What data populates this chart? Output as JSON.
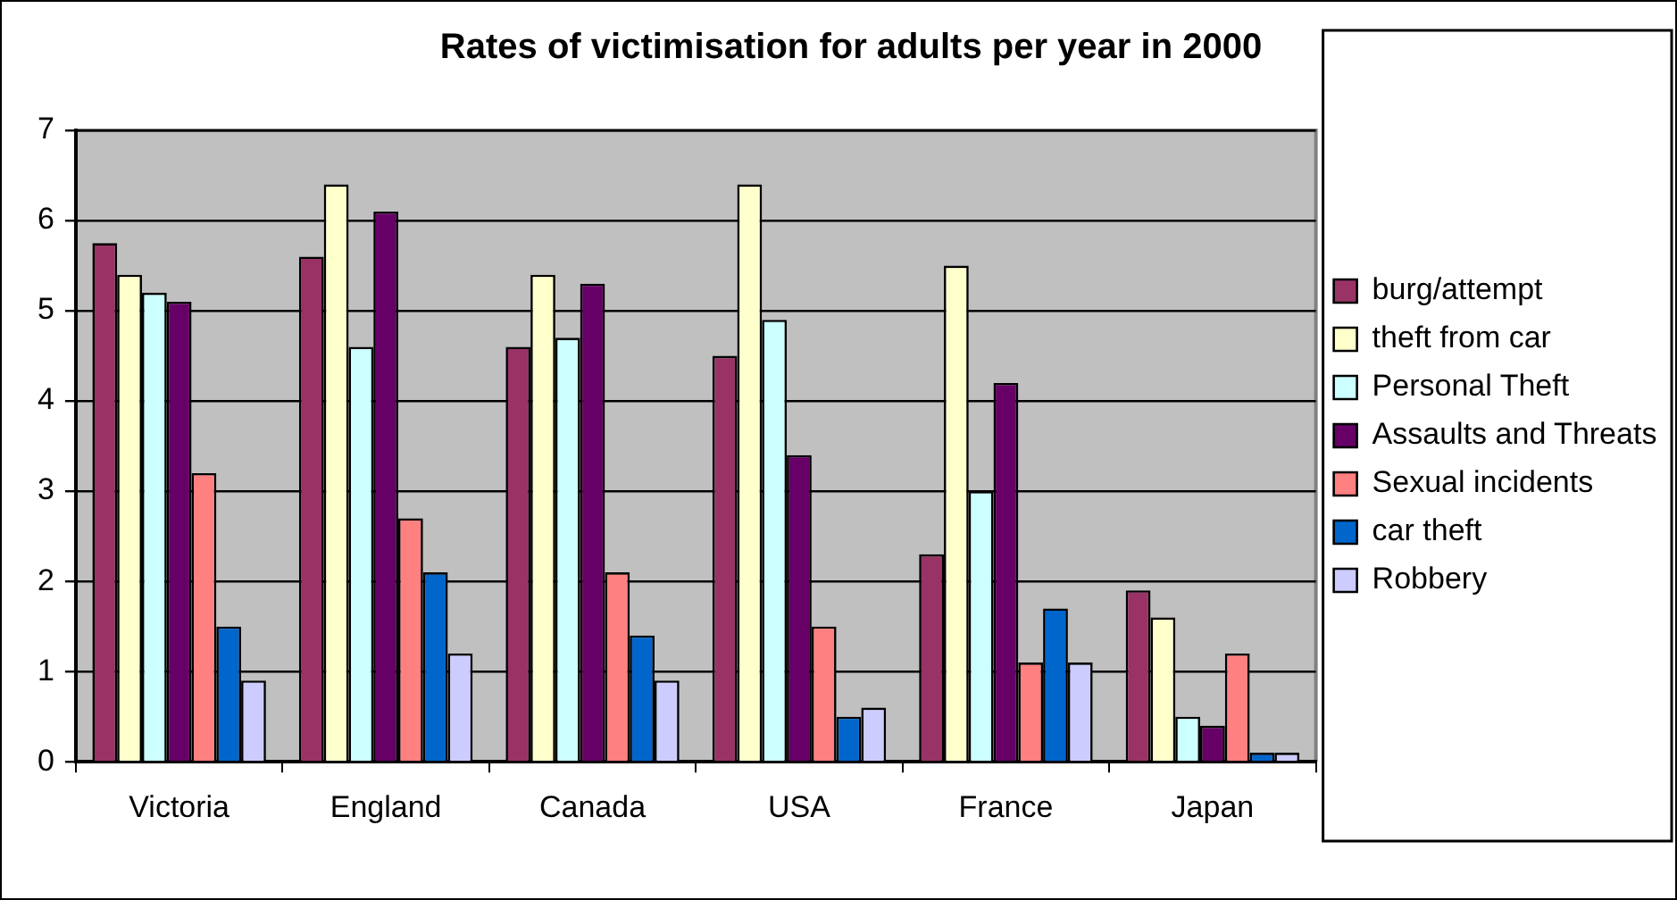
{
  "chart_data": {
    "type": "bar",
    "title": "Rates of victimisation for adults per year in 2000",
    "categories": [
      "Victoria",
      "England",
      "Canada",
      "USA",
      "France",
      "Japan"
    ],
    "series": [
      {
        "name": "burg/attempt",
        "color": "#993366",
        "values": [
          5.75,
          5.6,
          4.6,
          4.5,
          2.3,
          1.9
        ]
      },
      {
        "name": "theft from car",
        "color": "#ffffcc",
        "values": [
          5.4,
          6.4,
          5.4,
          6.4,
          5.5,
          1.6
        ]
      },
      {
        "name": "Personal Theft",
        "color": "#ccffff",
        "values": [
          5.2,
          4.6,
          4.7,
          4.9,
          3.0,
          0.5
        ]
      },
      {
        "name": "Assaults and Threats",
        "color": "#660066",
        "values": [
          5.1,
          6.1,
          5.3,
          3.4,
          4.2,
          0.4
        ]
      },
      {
        "name": "Sexual incidents",
        "color": "#ff8080",
        "values": [
          3.2,
          2.7,
          2.1,
          1.5,
          1.1,
          1.2
        ]
      },
      {
        "name": "car theft",
        "color": "#0066cc",
        "values": [
          1.5,
          2.1,
          1.4,
          0.5,
          1.7,
          0.1
        ]
      },
      {
        "name": "Robbery",
        "color": "#ccccff",
        "values": [
          0.9,
          1.2,
          0.9,
          0.6,
          1.1,
          0.1
        ]
      }
    ],
    "ylim": [
      0,
      7
    ],
    "yticks": [
      0,
      1,
      2,
      3,
      4,
      5,
      6,
      7
    ],
    "grid": "y",
    "legend": "right"
  }
}
